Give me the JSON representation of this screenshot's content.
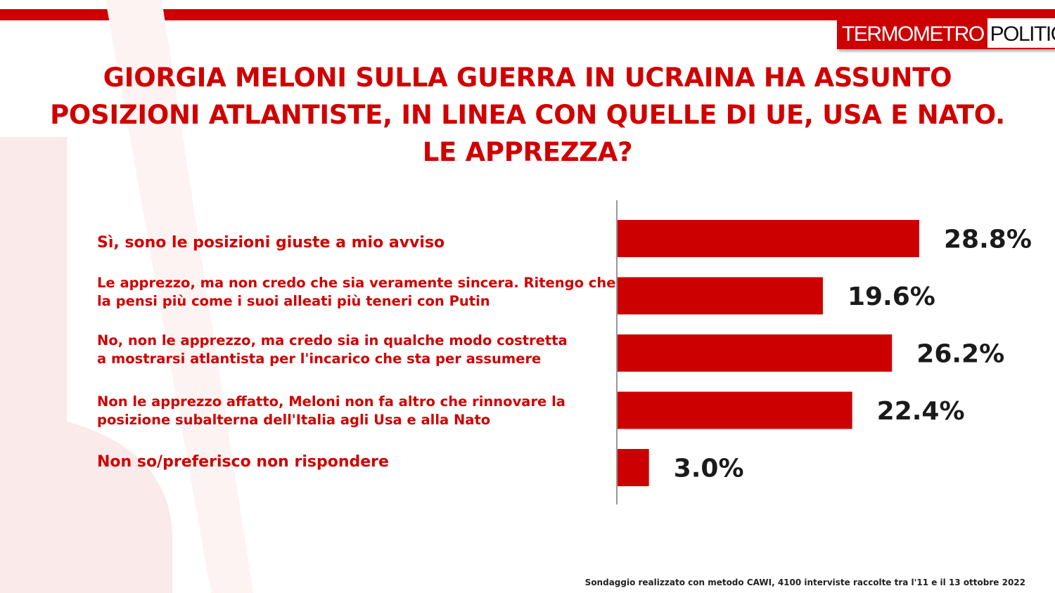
{
  "brand": {
    "logo_part1": "TERMOMETRO",
    "logo_part2": "POLITICO",
    "accent_color": "#cc0000"
  },
  "title_lines": [
    "GIORGIA MELONI SULLA GUERRA IN UCRAINA HA ASSUNTO",
    "POSIZIONI ATLANTISTE, IN LINEA CON QUELLE DI UE, USA E NATO.",
    "LE APPREZZA?"
  ],
  "chart_data": {
    "type": "bar",
    "orientation": "horizontal",
    "categories": [
      "Sì, sono le posizioni giuste a mio avviso",
      "Le apprezzo, ma non credo che sia veramente sincera. Ritengo che la pensi più come i suoi alleati più teneri con Putin",
      "No, non le apprezzo, ma credo sia in qualche modo costretta a mostrarsi atlantista per l'incarico che sta per assumere",
      "Non le apprezzo affatto, Meloni non fa altro che rinnovare la posizione subalterna dell'Italia agli Usa e alla Nato",
      "Non so/preferisco non rispondere"
    ],
    "category_lines": [
      [
        "Sì, sono le posizioni giuste a mio avviso"
      ],
      [
        "Le apprezzo, ma non credo che sia veramente sincera. Ritengo che",
        "la pensi più come i suoi alleati più teneri con Putin"
      ],
      [
        "No, non le apprezzo, ma credo sia in qualche modo costretta",
        "a mostrarsi atlantista per l'incarico che sta per assumere"
      ],
      [
        "Non le apprezzo affatto, Meloni non fa altro che rinnovare la",
        "posizione subalterna dell'Italia agli Usa e alla Nato"
      ],
      [
        "Non so/preferisco non rispondere"
      ]
    ],
    "values": [
      28.8,
      19.6,
      26.2,
      22.4,
      3.0
    ],
    "value_labels": [
      "28.8%",
      "19.6%",
      "26.2%",
      "22.4%",
      "3.0%"
    ],
    "bar_color": "#cc0000",
    "label_color": "#d00000",
    "grid": false,
    "legend": "none"
  },
  "footnote": "Sondaggio realizzato con metodo CAWI, 4100 interviste raccolte tra l'11 e il 13 ottobre 2022"
}
